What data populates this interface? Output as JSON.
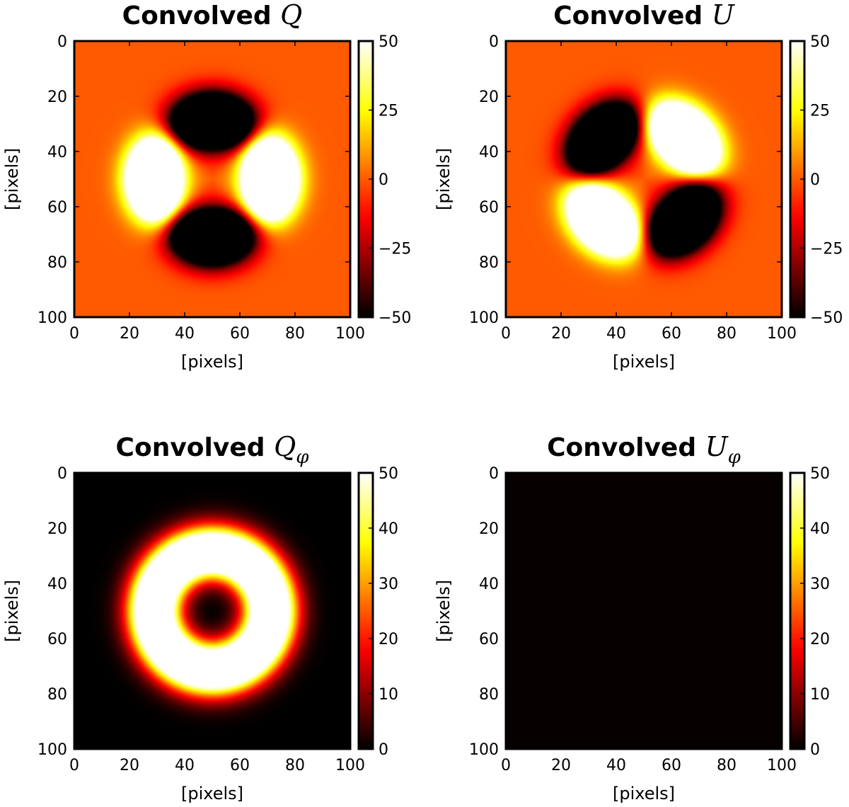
{
  "chart_data": [
    {
      "type": "heatmap",
      "field": "Q",
      "title": "Convolved Q",
      "title_text": "Convolved",
      "title_symbol": "Q",
      "title_subscript": "",
      "xlabel": "[pixels]",
      "ylabel": "[pixels]",
      "xlim": [
        0,
        100
      ],
      "ylim": [
        100,
        0
      ],
      "xticks": [
        0,
        20,
        40,
        60,
        80,
        100
      ],
      "yticks": [
        0,
        20,
        40,
        60,
        80,
        100
      ],
      "colormap": "hot",
      "colorbar": {
        "range": [
          -50,
          50
        ],
        "ticks": [
          50,
          25,
          0,
          -25,
          -50
        ],
        "tick_labels": [
          "50",
          "25",
          "0",
          "−25",
          "−50"
        ]
      }
    },
    {
      "type": "heatmap",
      "field": "U",
      "title": "Convolved U",
      "title_text": "Convolved",
      "title_symbol": "U",
      "title_subscript": "",
      "xlabel": "[pixels]",
      "ylabel": "[pixels]",
      "xlim": [
        0,
        100
      ],
      "ylim": [
        100,
        0
      ],
      "xticks": [
        0,
        20,
        40,
        60,
        80,
        100
      ],
      "yticks": [
        0,
        20,
        40,
        60,
        80,
        100
      ],
      "colormap": "hot",
      "colorbar": {
        "range": [
          -50,
          50
        ],
        "ticks": [
          50,
          25,
          0,
          -25,
          -50
        ],
        "tick_labels": [
          "50",
          "25",
          "0",
          "−25",
          "−50"
        ]
      }
    },
    {
      "type": "heatmap",
      "field": "Qphi",
      "title": "Convolved Qφ",
      "title_text": "Convolved",
      "title_symbol": "Q",
      "title_subscript": "φ",
      "xlabel": "[pixels]",
      "ylabel": "[pixels]",
      "xlim": [
        0,
        100
      ],
      "ylim": [
        100,
        0
      ],
      "xticks": [
        0,
        20,
        40,
        60,
        80,
        100
      ],
      "yticks": [
        0,
        20,
        40,
        60,
        80,
        100
      ],
      "colormap": "hot",
      "colorbar": {
        "range": [
          0,
          50
        ],
        "ticks": [
          50,
          40,
          30,
          20,
          10,
          0
        ],
        "tick_labels": [
          "50",
          "40",
          "30",
          "20",
          "10",
          "0"
        ]
      }
    },
    {
      "type": "heatmap",
      "field": "Uphi",
      "title": "Convolved Uφ",
      "title_text": "Convolved",
      "title_symbol": "U",
      "title_subscript": "φ",
      "xlabel": "[pixels]",
      "ylabel": "[pixels]",
      "xlim": [
        0,
        100
      ],
      "ylim": [
        100,
        0
      ],
      "xticks": [
        0,
        20,
        40,
        60,
        80,
        100
      ],
      "yticks": [
        0,
        20,
        40,
        60,
        80,
        100
      ],
      "colormap": "hot",
      "colorbar": {
        "range": [
          0,
          50
        ],
        "ticks": [
          50,
          40,
          30,
          20,
          10,
          0
        ],
        "tick_labels": [
          "50",
          "40",
          "30",
          "20",
          "10",
          "0"
        ]
      }
    }
  ]
}
